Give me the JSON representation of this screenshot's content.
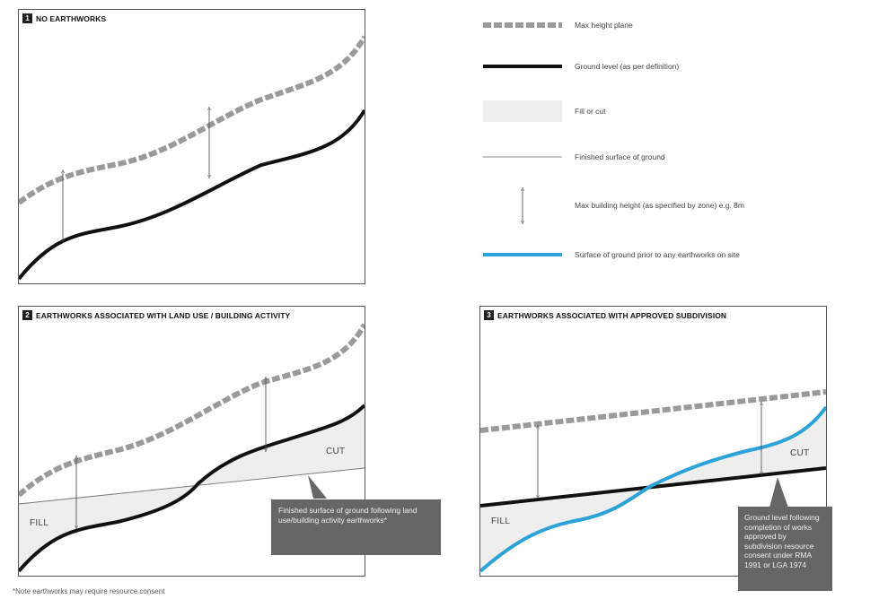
{
  "panels": {
    "p1": {
      "number": "1",
      "title": "NO EARTHWORKS"
    },
    "p2": {
      "number": "2",
      "title": "EARTHWORKS ASSOCIATED WITH LAND USE / BUILDING ACTIVITY",
      "fill_label": "FILL",
      "cut_label": "CUT",
      "callout": "Finished surface of ground following land use/building activity earthworks*"
    },
    "p3": {
      "number": "3",
      "title": "EARTHWORKS ASSOCIATED WITH APPROVED SUBDIVISION",
      "fill_label": "FILL",
      "cut_label": "CUT",
      "callout": "Ground level following completion of works approved by subdivision resource consent under RMA 1991 or LGA 1974"
    }
  },
  "legend": [
    {
      "key": "max-height-plane",
      "label": "Max height plane"
    },
    {
      "key": "ground-level",
      "label": "Ground level (as per definition)"
    },
    {
      "key": "fill-or-cut",
      "label": "Fill or cut"
    },
    {
      "key": "finished-surface",
      "label": "Finished surface of ground"
    },
    {
      "key": "max-building-height",
      "label": "Max building height (as specified by zone) e.g. 8m"
    },
    {
      "key": "surface-prior",
      "label": "Surface of ground prior to any earthworks on site"
    }
  ],
  "footnote": "*Note earthworks may require resource consent",
  "colors": {
    "height_plane": "#9a9a9a",
    "ground": "#111111",
    "fill_cut": "#eeeeee",
    "prior_surface": "#2ba3d9",
    "callout_bg": "#666666"
  }
}
